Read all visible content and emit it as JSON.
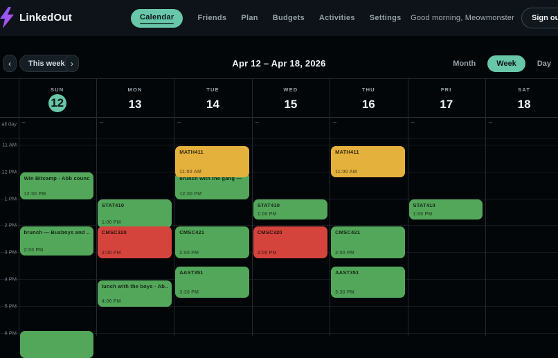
{
  "header": {
    "brand": "LinkedOut",
    "nav": [
      {
        "label": "Calendar",
        "active": true
      },
      {
        "label": "Friends",
        "active": false
      },
      {
        "label": "Plan",
        "active": false
      },
      {
        "label": "Budgets",
        "active": false
      },
      {
        "label": "Activities",
        "active": false
      },
      {
        "label": "Settings",
        "active": false
      }
    ],
    "greeting": "Good morning, Meowmonster",
    "sign_out": "Sign out"
  },
  "toolbar": {
    "prev": "‹",
    "this_week": "This week",
    "next": "›",
    "date_range": "Apr 12 – Apr 18, 2026",
    "views": [
      {
        "label": "Month",
        "active": false
      },
      {
        "label": "Week",
        "active": true
      },
      {
        "label": "Day",
        "active": false
      }
    ]
  },
  "calendar": {
    "all_day_label": "all day",
    "all_day_placeholder": "–",
    "hour_labels": [
      "11 AM",
      "12 PM",
      "1 PM",
      "2 PM",
      "3 PM",
      "4 PM",
      "5 PM",
      "6 PM"
    ],
    "days": [
      {
        "weekday": "SUN",
        "date": "12",
        "today": true
      },
      {
        "weekday": "MON",
        "date": "13",
        "today": false
      },
      {
        "weekday": "TUE",
        "date": "14",
        "today": false
      },
      {
        "weekday": "WED",
        "date": "15",
        "today": false
      },
      {
        "weekday": "THU",
        "date": "16",
        "today": false
      },
      {
        "weekday": "FRI",
        "date": "17",
        "today": false
      },
      {
        "weekday": "SAT",
        "date": "18",
        "today": false
      }
    ],
    "events": [
      {
        "day": 0,
        "title": "Win Bitcamp · Abb council",
        "time": "12:00 PM",
        "color": "green",
        "start": 12,
        "end": 13.1
      },
      {
        "day": 0,
        "title": "brunch — Busboys and ...",
        "time": "2:00 PM",
        "color": "green",
        "start": 14,
        "end": 15.2
      },
      {
        "day": 0,
        "title": "",
        "time": "",
        "color": "green",
        "start": 17.9,
        "end": 19
      },
      {
        "day": 1,
        "title": "STAT410",
        "time": "1:00 PM",
        "color": "green",
        "start": 13,
        "end": 14.15
      },
      {
        "day": 1,
        "title": "CMSC320",
        "time": "2:00 PM",
        "color": "red",
        "start": 14,
        "end": 15.3
      },
      {
        "day": 1,
        "title": "lunch with the boys · Ab...",
        "time": "4:00 PM",
        "color": "green",
        "start": 16,
        "end": 17.1
      },
      {
        "day": 2,
        "title": "brunch with the gang —",
        "time": "12:00 PM",
        "color": "green",
        "start": 12,
        "end": 13.1
      },
      {
        "day": 2,
        "title": "MATH411",
        "time": "11:00 AM",
        "color": "yellow",
        "start": 11,
        "end": 12.27
      },
      {
        "day": 2,
        "title": "CMSC421",
        "time": "2:00 PM",
        "color": "green",
        "start": 14,
        "end": 15.3
      },
      {
        "day": 2,
        "title": "AAST351",
        "time": "3:30 PM",
        "color": "green",
        "start": 15.5,
        "end": 16.75
      },
      {
        "day": 3,
        "title": "STAT410",
        "time": "1:00 PM",
        "color": "green",
        "start": 13,
        "end": 13.85
      },
      {
        "day": 3,
        "title": "CMSC320",
        "time": "2:00 PM",
        "color": "red",
        "start": 14,
        "end": 15.3
      },
      {
        "day": 4,
        "title": "MATH411",
        "time": "11:00 AM",
        "color": "yellow",
        "start": 11,
        "end": 12.27
      },
      {
        "day": 4,
        "title": "CMSC421",
        "time": "2:00 PM",
        "color": "green",
        "start": 14,
        "end": 15.3
      },
      {
        "day": 4,
        "title": "AAST351",
        "time": "3:30 PM",
        "color": "green",
        "start": 15.5,
        "end": 16.75
      },
      {
        "day": 5,
        "title": "STAT410",
        "time": "1:00 PM",
        "color": "green",
        "start": 13,
        "end": 13.85
      }
    ]
  },
  "colors": {
    "accent_teal": "#68c7a9",
    "event_green": "#53a75a",
    "event_red": "#d5443c",
    "event_yellow": "#e5b13d"
  }
}
